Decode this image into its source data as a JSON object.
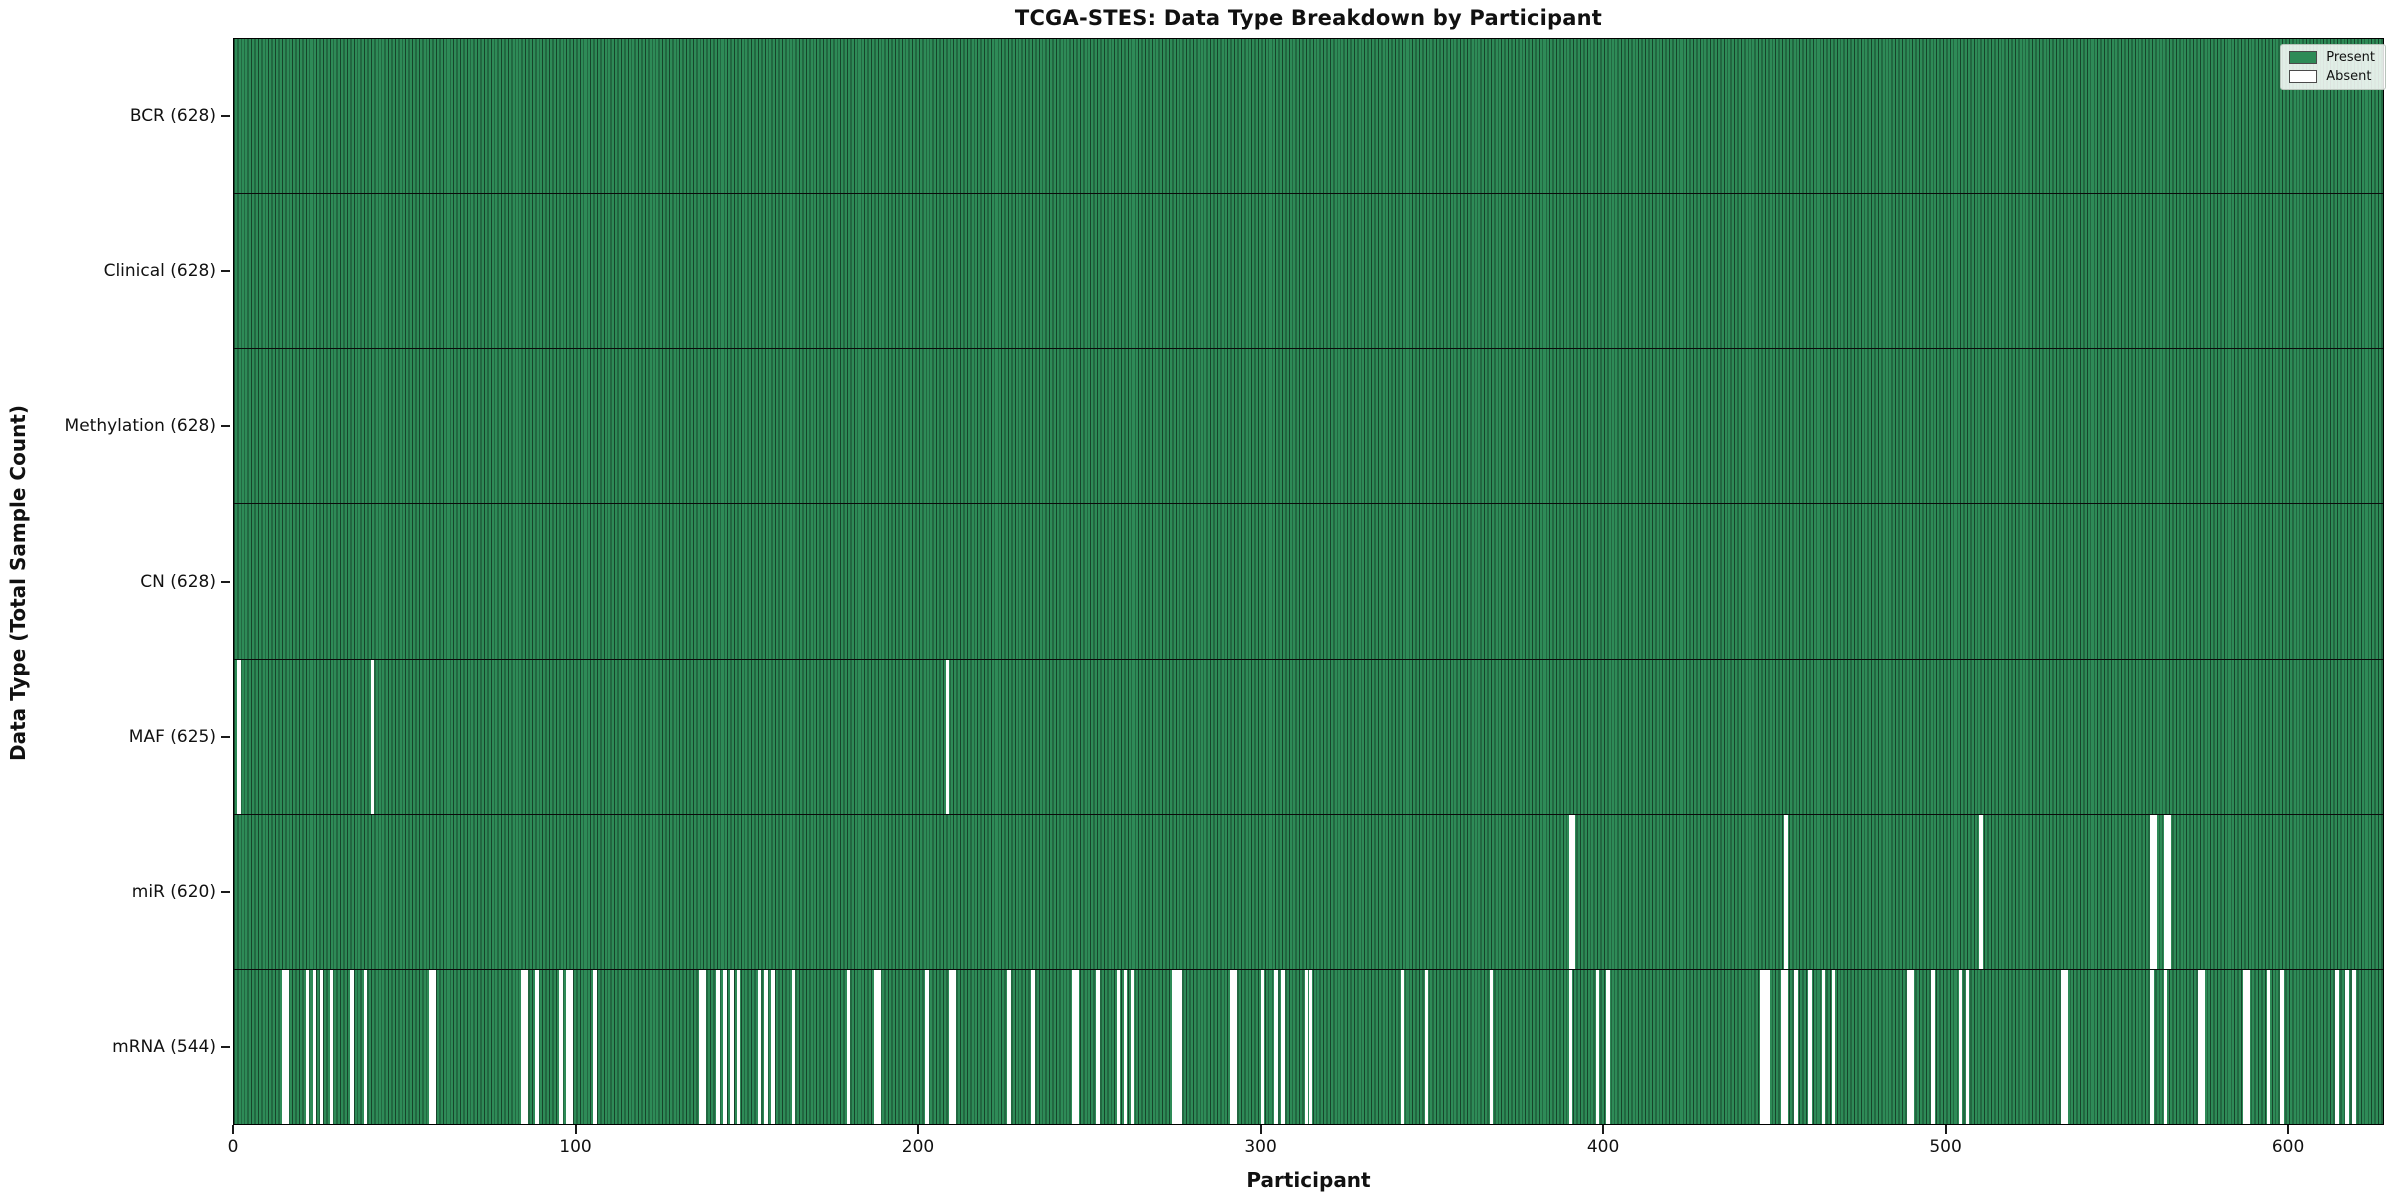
{
  "title": "TCGA-STES: Data Type Breakdown by Participant",
  "x_axis_label": "Participant",
  "y_axis_label": "Data Type (Total Sample Count)",
  "legend": {
    "present_label": "Present",
    "absent_label": "Absent"
  },
  "colors": {
    "present": "#2e8b57",
    "present_edge": "#16452b",
    "absent": "#ffffff",
    "axis": "#000000"
  },
  "chart_data": {
    "type": "heatmap",
    "title": "TCGA-STES: Data Type Breakdown by Participant",
    "xlabel": "Participant",
    "ylabel": "Data Type (Total Sample Count)",
    "legend_entries": [
      "Present",
      "Absent"
    ],
    "legend_position": "upper right",
    "grid": false,
    "n_participants": 628,
    "x_range": [
      0,
      628
    ],
    "x_ticks": [
      0,
      100,
      200,
      300,
      400,
      500,
      600
    ],
    "cell_values": "1 = present (green), 0 = absent (white); rows listed top to bottom",
    "rows": [
      {
        "name": "BCR",
        "total": 628,
        "label": "BCR (628)",
        "absent_indices": []
      },
      {
        "name": "Clinical",
        "total": 628,
        "label": "Clinical (628)",
        "absent_indices": []
      },
      {
        "name": "Methylation",
        "total": 628,
        "label": "Methylation (628)",
        "absent_indices": []
      },
      {
        "name": "CN",
        "total": 628,
        "label": "CN (628)",
        "absent_indices": []
      },
      {
        "name": "MAF",
        "total": 625,
        "label": "MAF (625)",
        "absent_indices": [
          1,
          40,
          208
        ]
      },
      {
        "name": "miR",
        "total": 620,
        "label": "miR (620)",
        "absent_indices": [
          390,
          391,
          453,
          510,
          560,
          561,
          564,
          565
        ]
      },
      {
        "name": "mRNA",
        "total": 544,
        "label": "mRNA (544)",
        "absent_indices": [
          14,
          15,
          21,
          23,
          25,
          28,
          34,
          38,
          57,
          58,
          84,
          85,
          88,
          95,
          97,
          98,
          105,
          136,
          137,
          141,
          143,
          145,
          147,
          153,
          155,
          157,
          163,
          179,
          187,
          188,
          202,
          209,
          210,
          226,
          233,
          245,
          246,
          252,
          258,
          260,
          262,
          274,
          275,
          276,
          291,
          292,
          300,
          304,
          306,
          313,
          314,
          341,
          348,
          367,
          390,
          398,
          401,
          446,
          447,
          448,
          452,
          453,
          456,
          460,
          464,
          467,
          489,
          490,
          496,
          504,
          506,
          534,
          535,
          560,
          564,
          574,
          575,
          587,
          588,
          594,
          598,
          614,
          617,
          619
        ]
      }
    ]
  }
}
